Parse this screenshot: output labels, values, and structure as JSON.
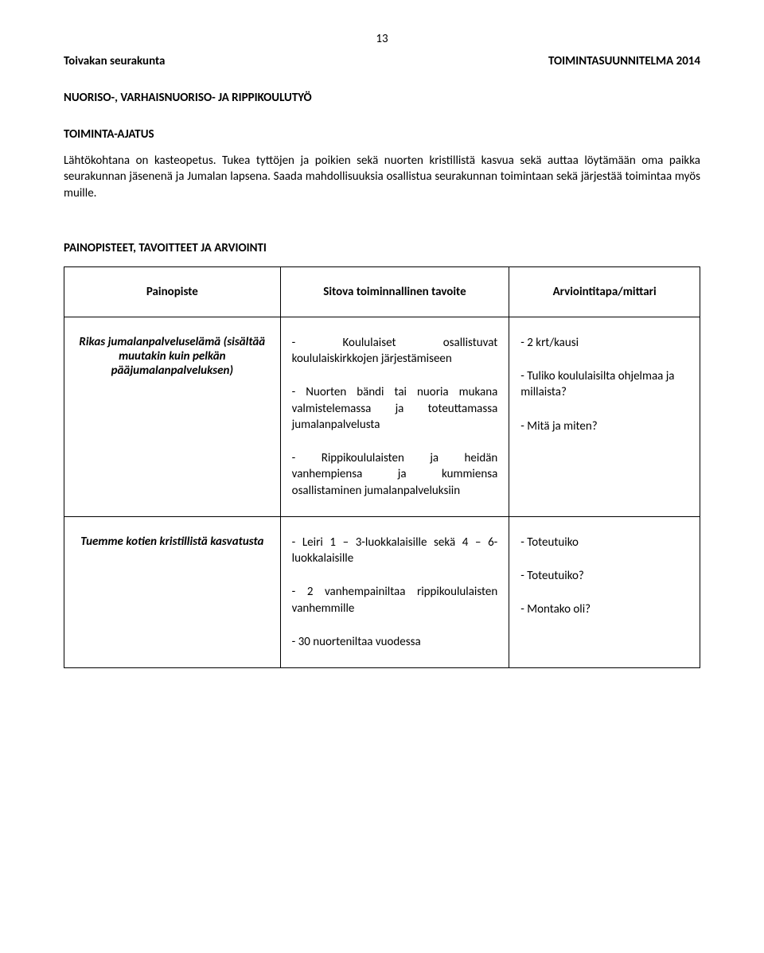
{
  "page_number": "13",
  "header": {
    "left": "Toivakan seurakunta",
    "right": "TOIMINTASUUNNITELMA 2014"
  },
  "section_heading": "NUORISO-, VARHAISNUORISO- JA RIPPIKOULUTYÖ",
  "subsection_heading": "TOIMINTA-AJATUS",
  "body_paragraph": "Lähtökohtana on kasteopetus. Tukea tyttöjen ja poikien sekä nuorten kristillistä kasvua sekä auttaa löytämään oma paikka seurakunnan jäsenenä ja Jumalan lapsena. Saada mahdollisuuksia osallistua seurakunnan toimintaan sekä järjestää toimintaa myös muille.",
  "table_heading": "PAINOPISTEET, TAVOITTEET JA ARVIOINTI",
  "table": {
    "headers": {
      "col1": "Painopiste",
      "col2": "Sitova toiminnallinen tavoite",
      "col3": "Arviointitapa/mittari"
    },
    "rows": [
      {
        "col1": "Rikas jumalanpalveluselämä (sisältää muutakin kuin pelkän pääjumalanpalveluksen)",
        "col2_items": [
          "- Koululaiset osallistuvat koululaiskirkkojen järjestämiseen",
          "- Nuorten bändi tai nuoria mukana valmistelemassa ja toteuttamassa jumalanpalvelusta",
          "- Rippikoululaisten ja heidän vanhempiensa ja kummiensa osallistaminen jumalanpalveluksiin"
        ],
        "col3_items": [
          "- 2 krt/kausi",
          "- Tuliko koululaisilta ohjelmaa ja millaista?",
          "- Mitä ja miten?"
        ]
      },
      {
        "col1": "Tuemme kotien kristillistä kasvatusta",
        "col2_items": [
          "- Leiri 1 – 3-luokkalaisille sekä 4 – 6-luokkalaisille",
          "- 2 vanhempainiltaa rippikoululaisten vanhemmille",
          "- 30 nuorteniltaa vuodessa"
        ],
        "col3_items": [
          "- Toteutuiko",
          "- Toteutuiko?",
          "- Montako oli?"
        ]
      }
    ]
  },
  "colors": {
    "text": "#000000",
    "background": "#ffffff",
    "border": "#000000"
  },
  "typography": {
    "body_fontsize_pt": 11,
    "heading_fontsize_pt": 11,
    "font_family": "Calibri"
  }
}
